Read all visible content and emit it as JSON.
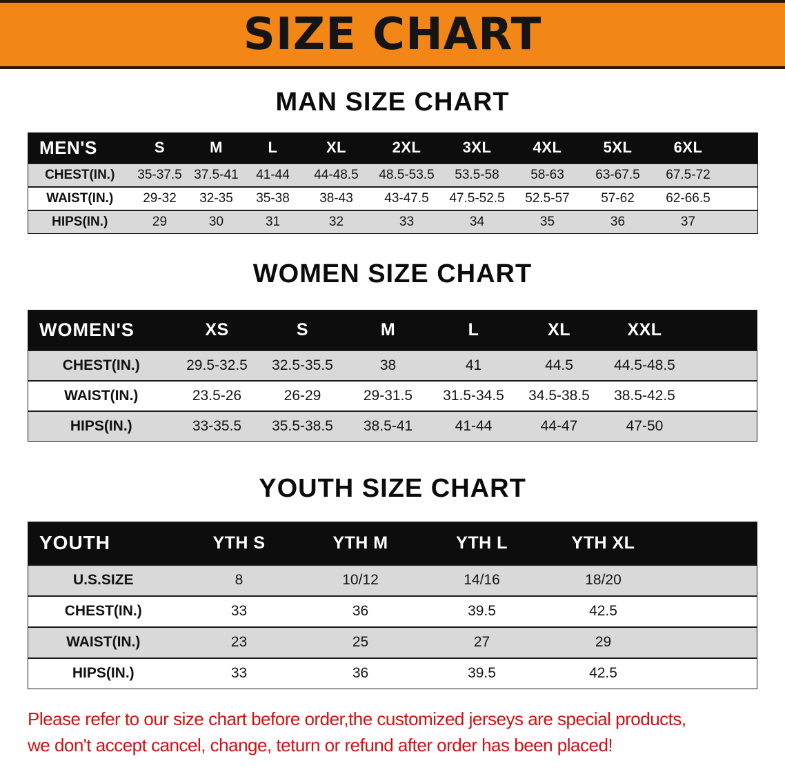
{
  "banner": {
    "title": "SIZE CHART"
  },
  "tables": [
    {
      "id": "men",
      "heading": "MAN SIZE CHART",
      "corner_label": "MEN'S",
      "columns": [
        "S",
        "M",
        "L",
        "XL",
        "2XL",
        "3XL",
        "4XL",
        "5XL",
        "6XL"
      ],
      "rows": [
        {
          "label": "CHEST(IN.)",
          "values": [
            "35-37.5",
            "37.5-41",
            "41-44",
            "44-48.5",
            "48.5-53.5",
            "53.5-58",
            "58-63",
            "63-67.5",
            "67.5-72"
          ]
        },
        {
          "label": "WAIST(IN.)",
          "values": [
            "29-32",
            "32-35",
            "35-38",
            "38-43",
            "43-47.5",
            "47.5-52.5",
            "52.5-57",
            "57-62",
            "62-66.5"
          ]
        },
        {
          "label": "HIPS(IN.)",
          "values": [
            "29",
            "30",
            "31",
            "32",
            "33",
            "34",
            "35",
            "36",
            "37"
          ]
        }
      ]
    },
    {
      "id": "women",
      "heading": "WOMEN SIZE CHART",
      "corner_label": "WOMEN'S",
      "columns": [
        "XS",
        "S",
        "M",
        "L",
        "XL",
        "XXL"
      ],
      "rows": [
        {
          "label": "CHEST(IN.)",
          "values": [
            "29.5-32.5",
            "32.5-35.5",
            "38",
            "41",
            "44.5",
            "44.5-48.5"
          ]
        },
        {
          "label": "WAIST(IN.)",
          "values": [
            "23.5-26",
            "26-29",
            "29-31.5",
            "31.5-34.5",
            "34.5-38.5",
            "38.5-42.5"
          ]
        },
        {
          "label": "HIPS(IN.)",
          "values": [
            "33-35.5",
            "35.5-38.5",
            "38.5-41",
            "41-44",
            "44-47",
            "47-50"
          ]
        }
      ]
    },
    {
      "id": "youth",
      "heading": "YOUTH SIZE CHART",
      "corner_label": "YOUTH",
      "columns": [
        "YTH S",
        "YTH M",
        "YTH L",
        "YTH XL"
      ],
      "rows": [
        {
          "label": "U.S.SIZE",
          "values": [
            "8",
            "10/12",
            "14/16",
            "18/20"
          ]
        },
        {
          "label": "CHEST(IN.)",
          "values": [
            "33",
            "36",
            "39.5",
            "42.5"
          ]
        },
        {
          "label": "WAIST(IN.)",
          "values": [
            "23",
            "25",
            "27",
            "29"
          ]
        },
        {
          "label": "HIPS(IN.)",
          "values": [
            "33",
            "36",
            "39.5",
            "42.5"
          ]
        }
      ]
    }
  ],
  "footer": {
    "line1": "Please refer to our size chart before order,the customized jerseys are special products,",
    "line2": "we don't accept cancel, change, teturn or refund after order has been placed!"
  },
  "colors": {
    "banner_bg": "#f28718",
    "table_header_bg": "#0d0d0d",
    "row_shade": "#d9d9d9",
    "notice_red": "#cf1212"
  }
}
